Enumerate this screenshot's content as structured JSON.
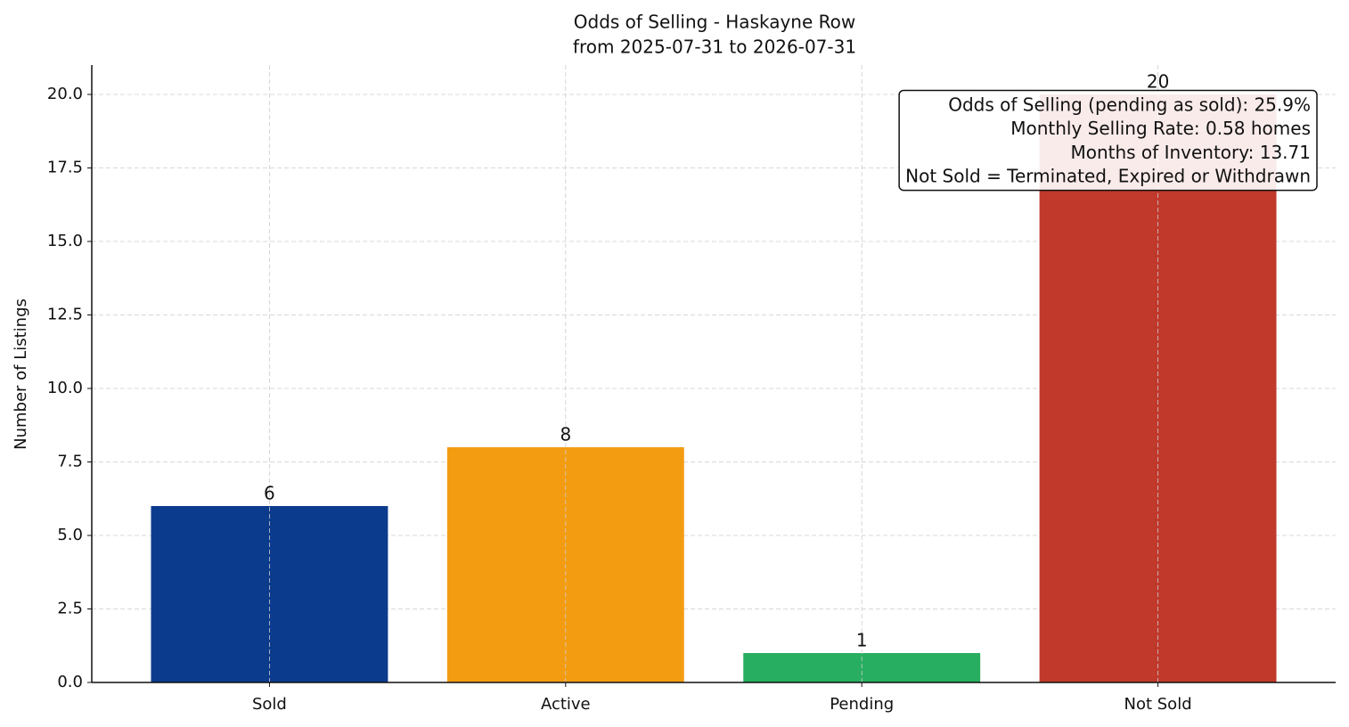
{
  "chart_data": {
    "type": "bar",
    "title": "Odds of Selling - Haskayne Row",
    "subtitle": "from 2025-07-31 to 2026-07-31",
    "y_label": "Number of Listings",
    "categories": [
      "Sold",
      "Active",
      "Pending",
      "Not Sold"
    ],
    "values": [
      6,
      8,
      1,
      20
    ],
    "colors": [
      "#0b3b8c",
      "#f39c12",
      "#27ae60",
      "#c0392b"
    ],
    "ylim": [
      0,
      21
    ],
    "yticks": [
      {
        "value": 0,
        "label": "0.0"
      },
      2.5,
      {
        "value": 5,
        "label": "5.0"
      },
      7.5,
      {
        "value": 10,
        "label": "10.0"
      },
      12.5,
      {
        "value": 15,
        "label": "15.0"
      },
      17.5,
      {
        "value": 20,
        "label": "20.0"
      }
    ],
    "grid": true,
    "annotations": [
      "Odds of Selling (pending as sold): 25.9%",
      "Monthly Selling Rate: 0.58 homes",
      "Months of Inventory: 13.71",
      "Not Sold = Terminated, Expired or Withdrawn"
    ]
  }
}
